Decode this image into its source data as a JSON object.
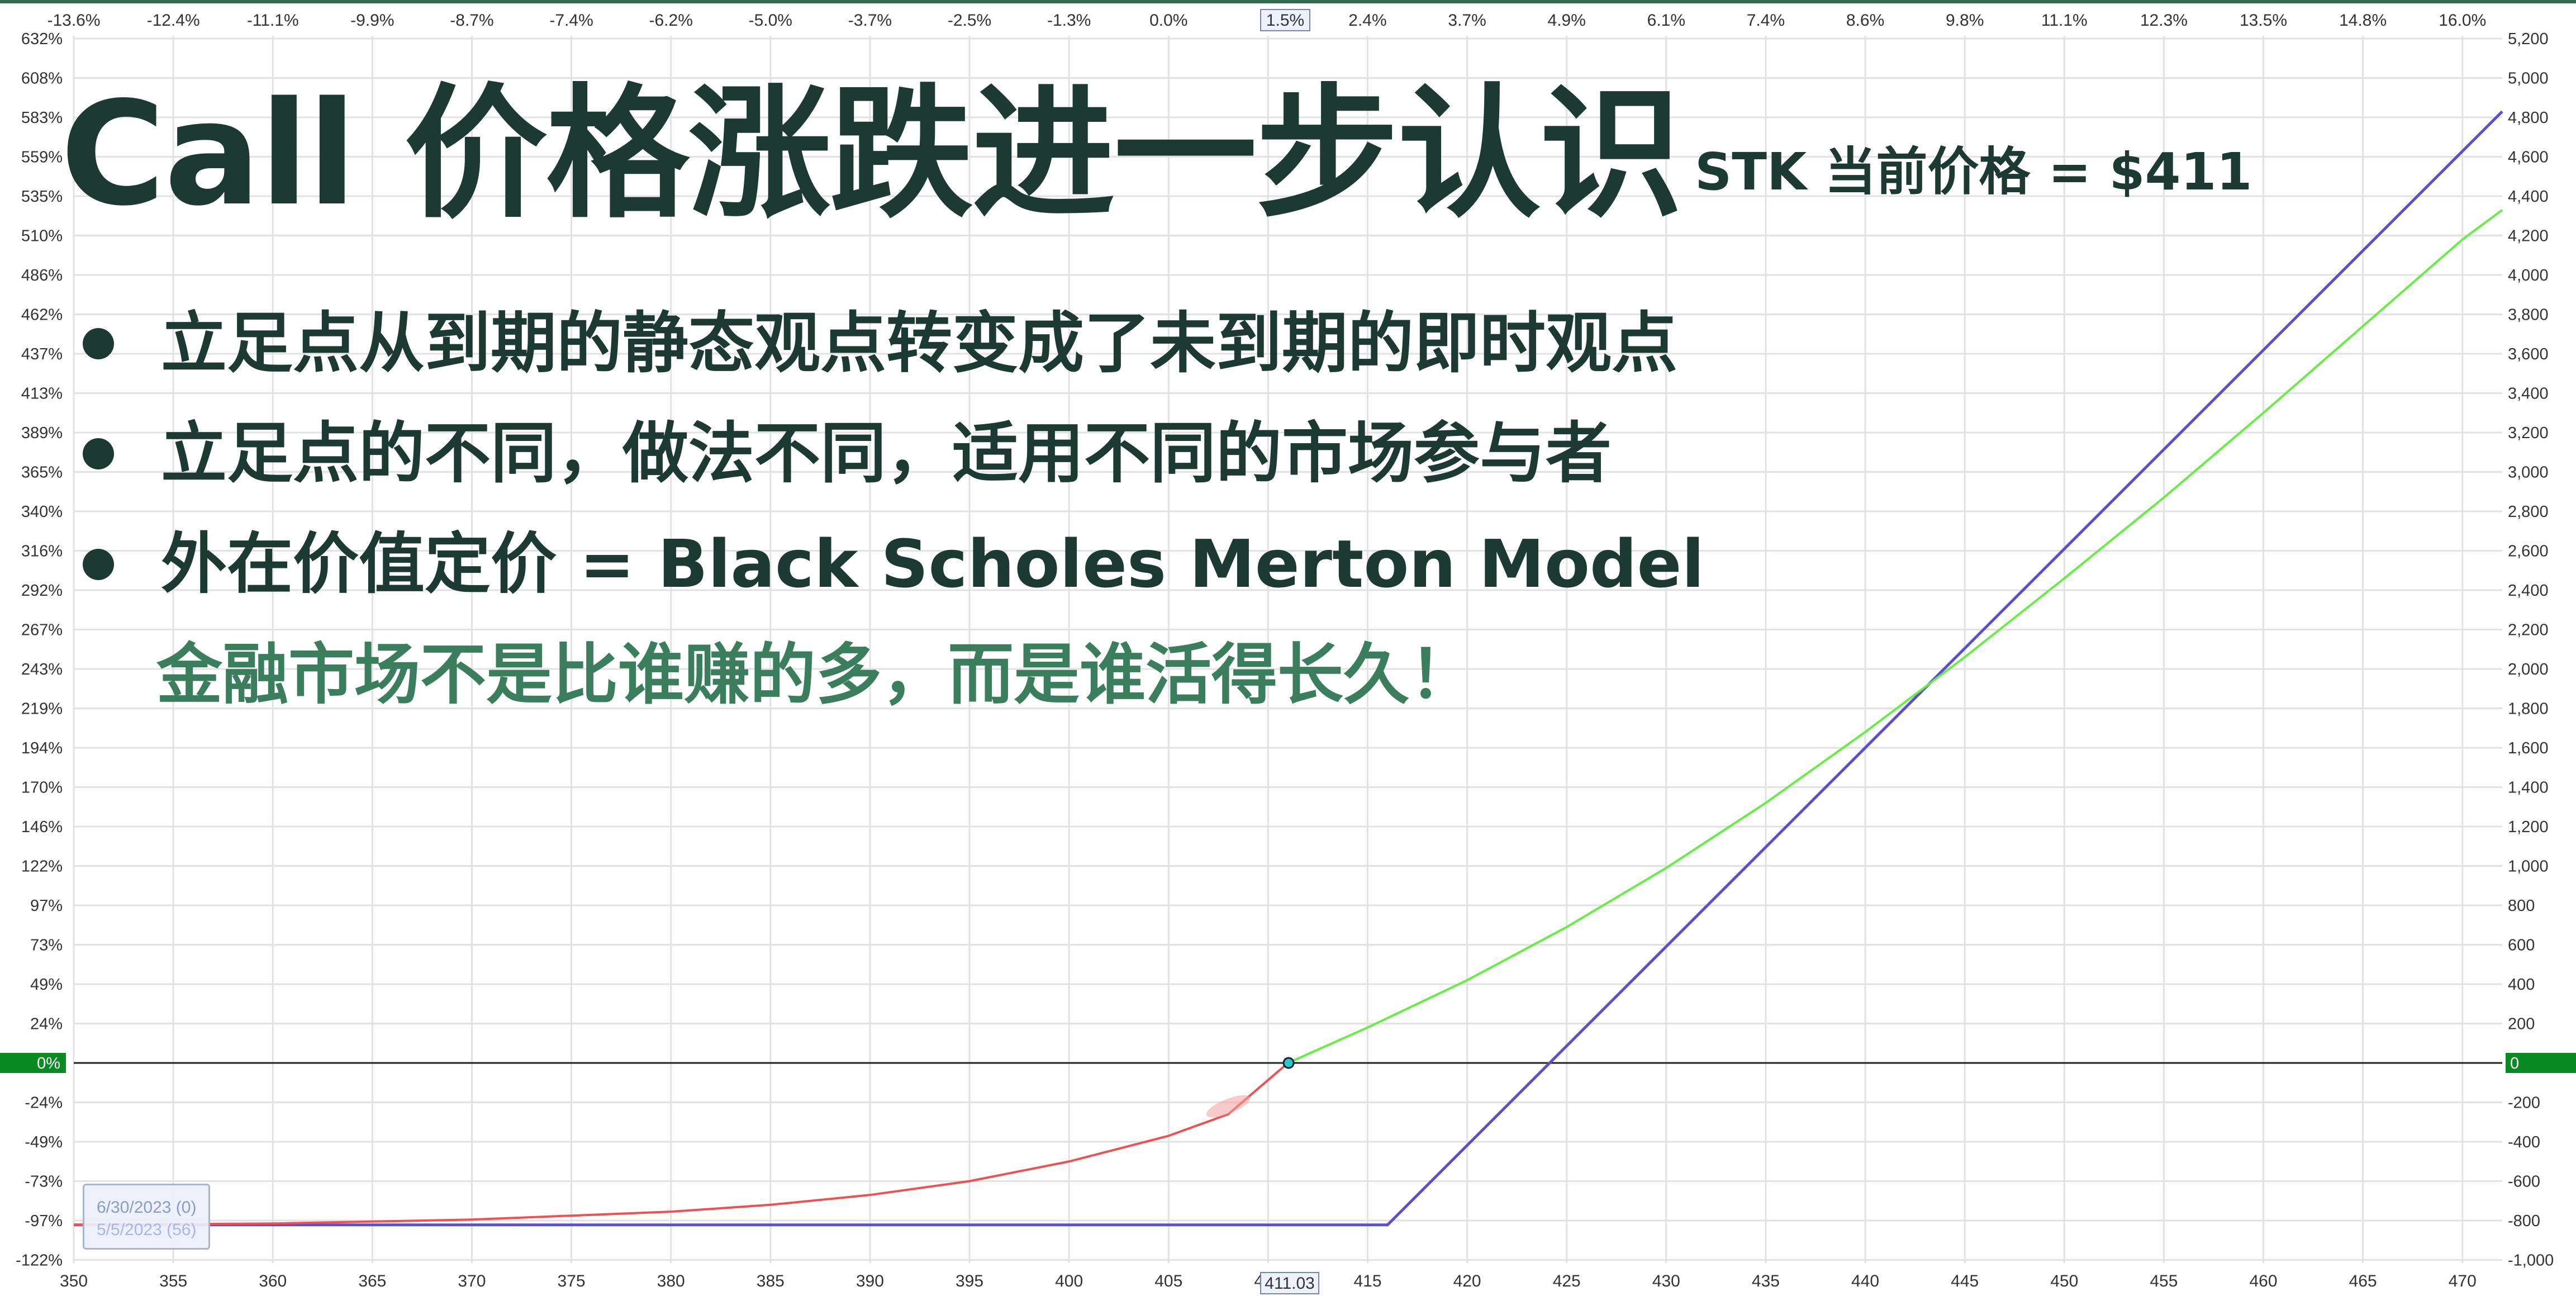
{
  "heading": {
    "title": "Call 价格涨跌进一步认识",
    "subtitle": "STK 当前价格 = $411"
  },
  "bullets": [
    "立足点从到期的静态观点转变成了未到期的即时观点",
    "立足点的不同，做法不同，适用不同的市场参与者",
    "外在价值定价 = Black Scholes Merton Model"
  ],
  "note": "金融市场不是比谁赚的多，而是谁活得长久！",
  "legend": {
    "entries": [
      {
        "label": "6/30/2023 (0)"
      },
      {
        "label": "5/5/2023 (56)"
      }
    ]
  },
  "chart_data": {
    "type": "line",
    "x_axis": {
      "range": [
        350,
        472
      ],
      "ticks": [
        "350",
        "355",
        "360",
        "365",
        "370",
        "375",
        "380",
        "385",
        "390",
        "395",
        "400",
        "405",
        "410",
        "415",
        "420",
        "425",
        "430",
        "435",
        "440",
        "445",
        "450",
        "455",
        "460",
        "465",
        "470"
      ],
      "cursor_label": "411.03",
      "cursor_value": 411.03
    },
    "top_axis": {
      "ticks": [
        "-13.6%",
        "-12.4%",
        "-11.1%",
        "-9.9%",
        "-8.7%",
        "-7.4%",
        "-6.2%",
        "-5.0%",
        "-3.7%",
        "-2.5%",
        "-1.3%",
        "0.0%",
        "1.",
        "2.4%",
        "3.7%",
        "4.9%",
        "6.1%",
        "7.4%",
        "8.6%",
        "9.8%",
        "11.1%",
        "12.3%",
        "13.5%",
        "14.8%",
        "16.0%"
      ],
      "cursor_label": "1.5%"
    },
    "y_left": {
      "ticks": [
        "632%",
        "608%",
        "583%",
        "559%",
        "535%",
        "510%",
        "486%",
        "462%",
        "437%",
        "413%",
        "389%",
        "365%",
        "340%",
        "316%",
        "292%",
        "267%",
        "243%",
        "219%",
        "194%",
        "170%",
        "146%",
        "122%",
        "97%",
        "73%",
        "49%",
        "24%",
        "0%",
        "-24%",
        "-49%",
        "-73%",
        "-97%",
        "-122%"
      ]
    },
    "y_right": {
      "range": [
        -1000,
        5200
      ],
      "ticks": [
        "5,200",
        "5,000",
        "4,800",
        "4,600",
        "4,400",
        "4,200",
        "4,000",
        "3,800",
        "3,600",
        "3,400",
        "3,200",
        "3,000",
        "2,800",
        "2,600",
        "2,400",
        "2,200",
        "2,000",
        "1,800",
        "1,600",
        "1,400",
        "1,200",
        "1,000",
        "800",
        "600",
        "400",
        "200",
        "0",
        "-200",
        "-400",
        "-600",
        "-800",
        "-1,000"
      ],
      "zero_label": "0"
    },
    "zero_label_left": "0%",
    "series": [
      {
        "name": "6/30/2023 (0)",
        "color": "#5b4fd0",
        "points": [
          [
            350,
            -822
          ],
          [
            416,
            -822
          ],
          [
            472,
            4830
          ]
        ]
      },
      {
        "name": "5/5/2023 (56)",
        "points": [
          [
            350,
            -822
          ],
          [
            360,
            -815
          ],
          [
            370,
            -795
          ],
          [
            380,
            -755
          ],
          [
            385,
            -720
          ],
          [
            390,
            -670
          ],
          [
            395,
            -600
          ],
          [
            400,
            -500
          ],
          [
            405,
            -370
          ],
          [
            408,
            -260
          ],
          [
            411,
            0
          ],
          [
            415,
            180
          ],
          [
            420,
            420
          ],
          [
            425,
            690
          ],
          [
            430,
            990
          ],
          [
            435,
            1320
          ],
          [
            440,
            1680
          ],
          [
            445,
            2060
          ],
          [
            450,
            2460
          ],
          [
            455,
            2870
          ],
          [
            460,
            3300
          ],
          [
            465,
            3740
          ],
          [
            470,
            4180
          ],
          [
            472,
            4330
          ]
        ]
      }
    ],
    "marker": {
      "x": 411.03,
      "y": 0
    },
    "colors": {
      "loss": "#f05050",
      "profit": "#66ee44",
      "zero_band": "#0a8a22",
      "border": "#2e6e4e",
      "grid": "#e2e2e2"
    }
  }
}
